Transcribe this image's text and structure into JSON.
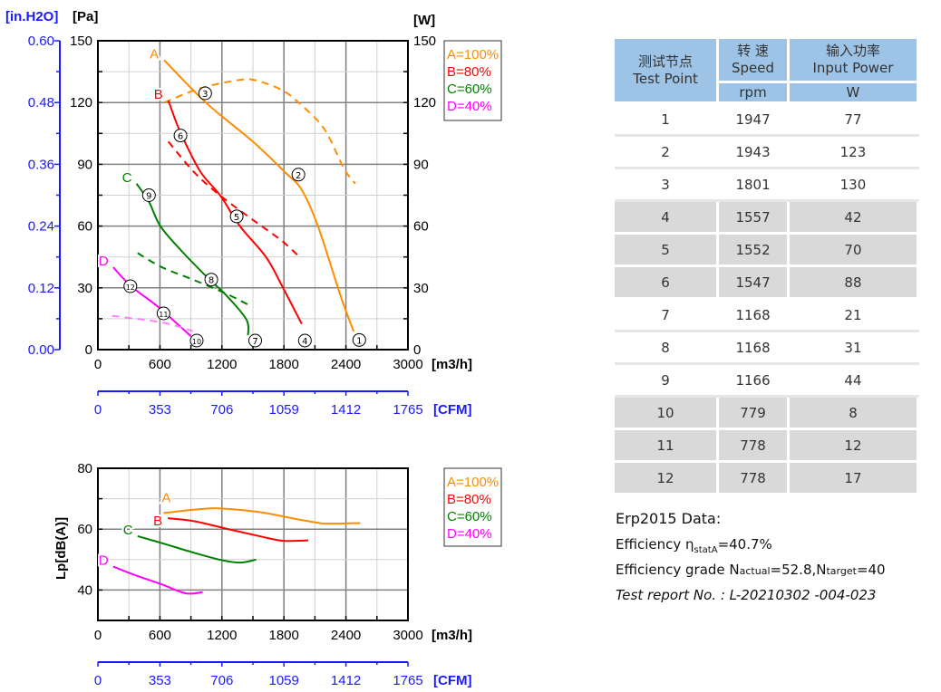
{
  "chart_data": [
    {
      "type": "line",
      "xlabel": "[m3/h]",
      "ylabel": "[Pa]",
      "ylabel_left2": "[in.H2O]",
      "ylabel_right": "[W]",
      "x2label": "[CFM]",
      "xlim": [
        0,
        3000
      ],
      "ylim": [
        0,
        150
      ],
      "y2lim": [
        0,
        0.6
      ],
      "yrightlim": [
        0,
        150
      ],
      "xticks": [
        "0",
        "600",
        "1200",
        "1800",
        "2400",
        "3000"
      ],
      "yticks": [
        "0",
        "30",
        "60",
        "90",
        "120",
        "150"
      ],
      "y2ticks": [
        "0.00",
        "0.12",
        "0.24",
        "0.36",
        "0.48",
        "0.60"
      ],
      "yrightticks": [
        "0",
        "30",
        "60",
        "90",
        "120",
        "150"
      ],
      "cfmticks": [
        "0",
        "353",
        "706",
        "1059",
        "1412",
        "1765"
      ],
      "grid": true,
      "legend_position": "right",
      "series": [
        {
          "name": "A=100%",
          "label": "A",
          "color": "#ff8c00",
          "kind": "pressure",
          "points": [
            [
              641,
              140.6
            ],
            [
              1044,
              120
            ],
            [
              1500,
              101
            ],
            [
              1814,
              86
            ],
            [
              1972,
              77.6
            ],
            [
              2129,
              60
            ],
            [
              2349,
              26
            ],
            [
              2475,
              8.8
            ]
          ]
        },
        {
          "name": "A=100%",
          "color": "#ff8c00",
          "kind": "power",
          "points": [
            [
              641,
              120
            ],
            [
              997,
              127
            ],
            [
              1374,
              131
            ],
            [
              1531,
              130.7
            ],
            [
              1783,
              126
            ],
            [
              1972,
              118.6
            ],
            [
              2192,
              107
            ],
            [
              2381,
              88
            ],
            [
              2490,
              80.6
            ]
          ]
        },
        {
          "name": "B=80%",
          "label": "B",
          "color": "#ff0000",
          "kind": "pressure",
          "points": [
            [
              682,
              121
            ],
            [
              761,
              110
            ],
            [
              840,
              101
            ],
            [
              997,
              86
            ],
            [
              1186,
              74.7
            ],
            [
              1374,
              60
            ],
            [
              1626,
              45
            ],
            [
              1783,
              30.8
            ],
            [
              1972,
              12.5
            ]
          ]
        },
        {
          "name": "B=80%",
          "color": "#ff0000",
          "kind": "power",
          "points": [
            [
              682,
              101
            ],
            [
              934,
              86
            ],
            [
              1186,
              74.7
            ],
            [
              1500,
              63
            ],
            [
              1783,
              52.7
            ],
            [
              1956,
              44.7
            ]
          ]
        },
        {
          "name": "C=60%",
          "label": "C",
          "color": "#008000",
          "kind": "pressure",
          "points": [
            [
              374,
              80.6
            ],
            [
              494,
              71.8
            ],
            [
              604,
              60
            ],
            [
              808,
              48
            ],
            [
              1060,
              35
            ],
            [
              1249,
              26
            ],
            [
              1437,
              14.6
            ],
            [
              1453,
              7
            ]
          ]
        },
        {
          "name": "C=60%",
          "color": "#008000",
          "kind": "power",
          "points": [
            [
              384,
              46.9
            ],
            [
              620,
              40
            ],
            [
              934,
              33.7
            ],
            [
              1249,
              27
            ],
            [
              1484,
              21
            ]
          ]
        },
        {
          "name": "D=40%",
          "label": "D",
          "color": "#ff00ff",
          "kind": "pressure",
          "points": [
            [
              148,
              40
            ],
            [
              321,
              30.8
            ],
            [
              588,
              20.5
            ],
            [
              900,
              6.5
            ]
          ]
        },
        {
          "name": "D=40%",
          "color": "#ff80ff",
          "kind": "power",
          "points": [
            [
              138,
              16.4
            ],
            [
              620,
              13.2
            ],
            [
              918,
              9
            ]
          ]
        }
      ],
      "test_points": [
        {
          "n": "1",
          "x": 2529,
          "y": 4.7
        },
        {
          "n": "2",
          "x": 1940,
          "y": 85
        },
        {
          "n": "3",
          "x": 1038,
          "y": 124.5
        },
        {
          "n": "4",
          "x": 2003,
          "y": 4.4
        },
        {
          "n": "5",
          "x": 1343,
          "y": 64.7
        },
        {
          "n": "6",
          "x": 799,
          "y": 104
        },
        {
          "n": "7",
          "x": 1522,
          "y": 4.4
        },
        {
          "n": "8",
          "x": 1097,
          "y": 34
        },
        {
          "n": "9",
          "x": 494,
          "y": 75
        },
        {
          "n": "10",
          "x": 956,
          "y": 4.4
        },
        {
          "n": "11",
          "x": 635,
          "y": 17.6
        },
        {
          "n": "12",
          "x": 314,
          "y": 30.8
        }
      ]
    },
    {
      "type": "line",
      "xlabel": "[m3/h]",
      "ylabel": "Lp[dB(A)]",
      "x2label": "[CFM]",
      "xlim": [
        0,
        3000
      ],
      "ylim": [
        30,
        80
      ],
      "xticks": [
        "0",
        "600",
        "1200",
        "1800",
        "2400",
        "3000"
      ],
      "yticks": [
        "40",
        "60",
        "80"
      ],
      "cfmticks": [
        "0",
        "353",
        "706",
        "1059",
        "1412",
        "1765"
      ],
      "grid": true,
      "legend_position": "right",
      "series": [
        {
          "name": "A=100%",
          "label": "A",
          "color": "#ff8c00",
          "points": [
            [
              635,
              65.3
            ],
            [
              997,
              66.6
            ],
            [
              1186,
              66.8
            ],
            [
              1563,
              65.6
            ],
            [
              1877,
              63.6
            ],
            [
              2129,
              62.1
            ],
            [
              2223,
              61.8
            ],
            [
              2538,
              62.0
            ]
          ]
        },
        {
          "name": "B=80%",
          "label": "B",
          "color": "#ff0000",
          "points": [
            [
              676,
              63.6
            ],
            [
              934,
              62.6
            ],
            [
              1249,
              60.1
            ],
            [
              1563,
              57.7
            ],
            [
              1783,
              56.2
            ],
            [
              2035,
              56.3
            ]
          ]
        },
        {
          "name": "C=60%",
          "label": "C",
          "color": "#008000",
          "points": [
            [
              384,
              57.7
            ],
            [
              620,
              55.4
            ],
            [
              934,
              52.2
            ],
            [
              1186,
              49.9
            ],
            [
              1374,
              49.0
            ],
            [
              1531,
              50.0
            ]
          ]
        },
        {
          "name": "D=40%",
          "label": "D",
          "color": "#ff00ff",
          "points": [
            [
              148,
              47.7
            ],
            [
              368,
              44.8
            ],
            [
              620,
              41.8
            ],
            [
              808,
              39.3
            ],
            [
              903,
              38.8
            ],
            [
              1013,
              39.3
            ]
          ]
        }
      ]
    }
  ],
  "table": {
    "headers": {
      "point_cn": "测试节点",
      "point_en": "Test Point",
      "speed_cn": "转 速",
      "speed_en": "Speed",
      "speed_unit": "rpm",
      "power_cn": "输入功率",
      "power_en": "Input Power",
      "power_unit": "W"
    },
    "rows": [
      [
        "1",
        "1947",
        "77"
      ],
      [
        "2",
        "1943",
        "123"
      ],
      [
        "3",
        "1801",
        "130"
      ],
      [
        "4",
        "1557",
        "42"
      ],
      [
        "5",
        "1552",
        "70"
      ],
      [
        "6",
        "1547",
        "88"
      ],
      [
        "7",
        "1168",
        "21"
      ],
      [
        "8",
        "1168",
        "31"
      ],
      [
        "9",
        "1166",
        "44"
      ],
      [
        "10",
        "779",
        "8"
      ],
      [
        "11",
        "778",
        "12"
      ],
      [
        "12",
        "778",
        "17"
      ]
    ]
  },
  "erp": {
    "title": "Erp2015  Data:",
    "eff_label": "Efficiency η",
    "eff_sub": "statA",
    "eff_value": "=40.7%",
    "grade_label": "Efficiency grade  N",
    "grade_sub1": "actual",
    "grade_mid": "=52.8,N",
    "grade_sub2": "target",
    "grade_end": "=40",
    "report": "Test report No.  : L-20210302 -004-023"
  }
}
